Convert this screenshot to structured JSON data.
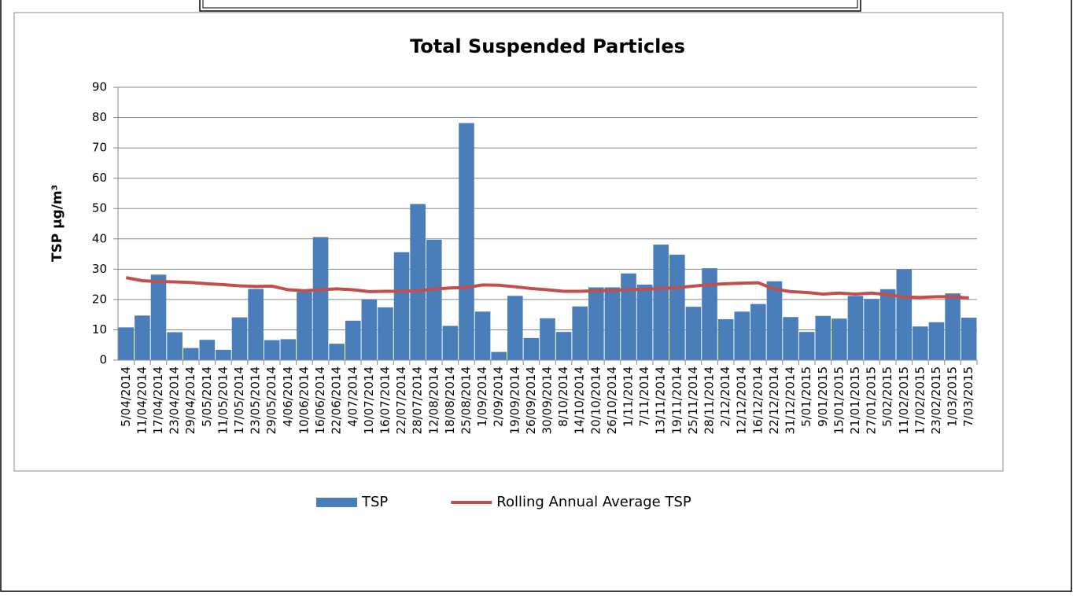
{
  "chart_data": {
    "type": "bar",
    "title": "Total Suspended Particles",
    "y_label": "TSP μg/m³",
    "categories": [
      "5/04/2014",
      "11/04/2014",
      "17/04/2014",
      "23/04/2014",
      "29/04/2014",
      "5/05/2014",
      "11/05/2014",
      "17/05/2014",
      "23/05/2014",
      "29/05/2014",
      "4/06/2014",
      "10/06/2014",
      "16/06/2014",
      "22/06/2014",
      "4/07/2014",
      "10/07/2014",
      "16/07/2014",
      "22/07/2014",
      "28/07/2014",
      "12/08/2014",
      "18/08/2014",
      "25/08/2014",
      "1/09/2014",
      "2/09/2014",
      "19/09/2014",
      "26/09/2014",
      "30/09/2014",
      "8/10/2014",
      "14/10/2014",
      "20/10/2014",
      "26/10/2014",
      "1/11/2014",
      "7/11/2014",
      "13/11/2014",
      "19/11/2014",
      "25/11/2014",
      "28/11/2014",
      "2/12/2014",
      "12/12/2014",
      "16/12/2014",
      "22/12/2014",
      "31/12/2014",
      "5/01/2015",
      "9/01/2015",
      "15/01/2015",
      "21/01/2015",
      "27/01/2015",
      "5/02/2015",
      "11/02/2015",
      "17/02/2015",
      "23/02/2015",
      "1/03/2015",
      "7/03/2015"
    ],
    "series": [
      {
        "name": "TSP",
        "type": "bar",
        "color": "#4a7ebb",
        "values": [
          10.8,
          14.7,
          28.2,
          9.2,
          4,
          6.7,
          3.4,
          14.1,
          23.5,
          6.6,
          6.9,
          22.5,
          40.6,
          5.4,
          13,
          20,
          17.4,
          35.6,
          51.5,
          39.7,
          11.3,
          78.2,
          16,
          2.7,
          21.2,
          7.3,
          13.8,
          9.3,
          17.7,
          24,
          24,
          28.6,
          24.9,
          38.1,
          34.8,
          17.6,
          30.3,
          13.5,
          16,
          18.5,
          26,
          14.2,
          9.3,
          14.6,
          13.7,
          21.2,
          20.2,
          23.4,
          29.9,
          11.1,
          12.5,
          22,
          14
        ]
      },
      {
        "name": "Rolling Annual Average TSP",
        "type": "line",
        "color": "#c0504d",
        "values": [
          27.2,
          26.2,
          25.9,
          25.8,
          25.6,
          25.2,
          24.9,
          24.5,
          24.3,
          24.4,
          23.2,
          22.9,
          23.2,
          23.5,
          23.2,
          22.6,
          22.7,
          22.7,
          22.9,
          23.4,
          23.8,
          24,
          24.8,
          24.7,
          24.2,
          23.6,
          23.2,
          22.7,
          22.7,
          22.9,
          23,
          23.2,
          23.4,
          23.6,
          23.9,
          24.4,
          24.9,
          25.2,
          25.4,
          25.5,
          23.4,
          22.6,
          22.3,
          21.8,
          22.1,
          21.8,
          22.1,
          21.6,
          20.8,
          20.7,
          20.9,
          20.9,
          20.5
        ]
      }
    ],
    "ylim": [
      0,
      90
    ],
    "yticks": [
      0,
      10,
      20,
      30,
      40,
      50,
      60,
      70,
      80,
      90
    ],
    "grid": true,
    "legend": "bottom"
  }
}
